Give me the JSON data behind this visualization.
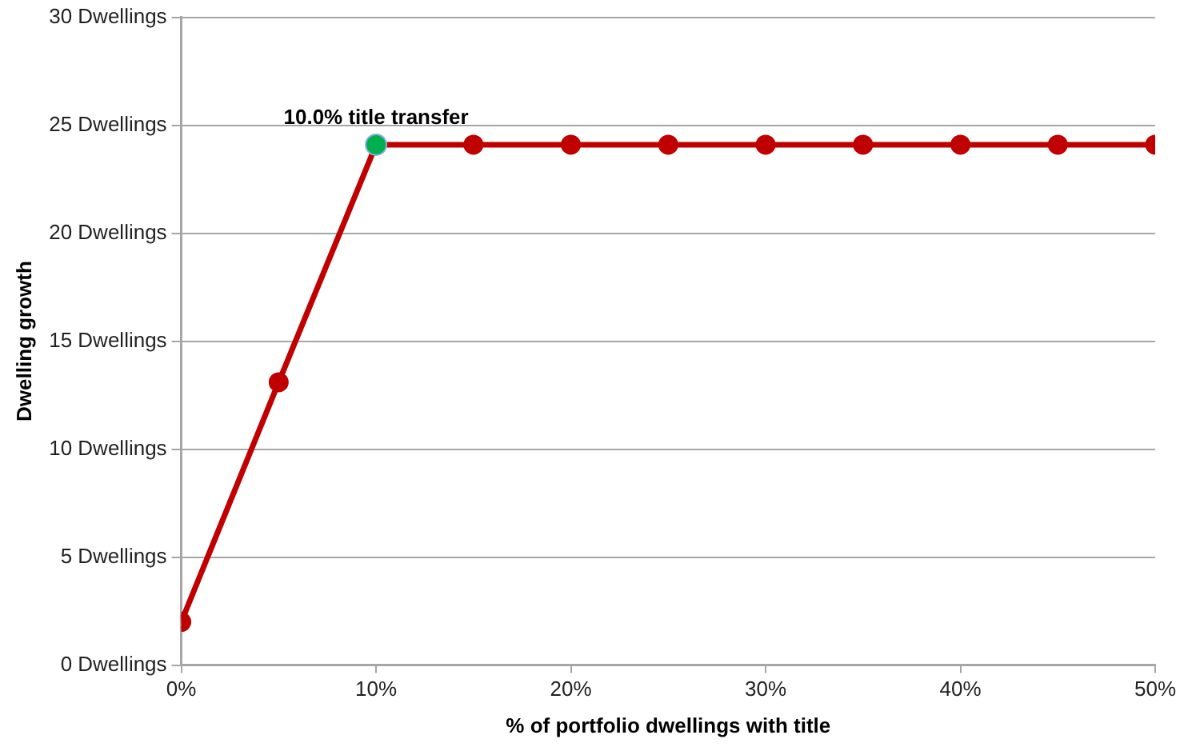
{
  "chart_data": {
    "type": "line",
    "xlabel": "% of portfolio dwellings with title",
    "ylabel": "Dwelling growth",
    "x": [
      0,
      5,
      10,
      15,
      20,
      25,
      30,
      35,
      40,
      45,
      50
    ],
    "series": [
      {
        "color": "#c00000",
        "values": [
          2,
          13.1,
          24.1,
          24.1,
          24.1,
          24.1,
          24.1,
          24.1,
          24.1,
          24.1,
          24.1
        ]
      },
      {
        "type": "scatter",
        "color": "#00b050",
        "x": [
          10
        ],
        "values": [
          24.1
        ]
      }
    ],
    "xlim": [
      0,
      50
    ],
    "xticks": [
      {
        "value": 0,
        "label": "0%"
      },
      {
        "value": 10,
        "label": "10%"
      },
      {
        "value": 20,
        "label": "20%"
      },
      {
        "value": 30,
        "label": "30%"
      },
      {
        "value": 40,
        "label": "40%"
      },
      {
        "value": 50,
        "label": "50%"
      }
    ],
    "ylim": [
      0,
      30
    ],
    "yticks": [
      {
        "value": 0,
        "label": "0 Dwellings"
      },
      {
        "value": 5,
        "label": "5 Dwellings"
      },
      {
        "value": 10,
        "label": "10 Dwellings"
      },
      {
        "value": 15,
        "label": "15 Dwellings"
      },
      {
        "value": 20,
        "label": "20 Dwellings"
      },
      {
        "value": 25,
        "label": "25 Dwellings"
      },
      {
        "value": 30,
        "label": "30 Dwellings"
      }
    ],
    "grid": "y",
    "legend": false,
    "marker": "circle",
    "line_style": "solid",
    "annotations": [
      {
        "text": "10.0% title transfer",
        "x": 10,
        "y": 24.1
      }
    ]
  }
}
